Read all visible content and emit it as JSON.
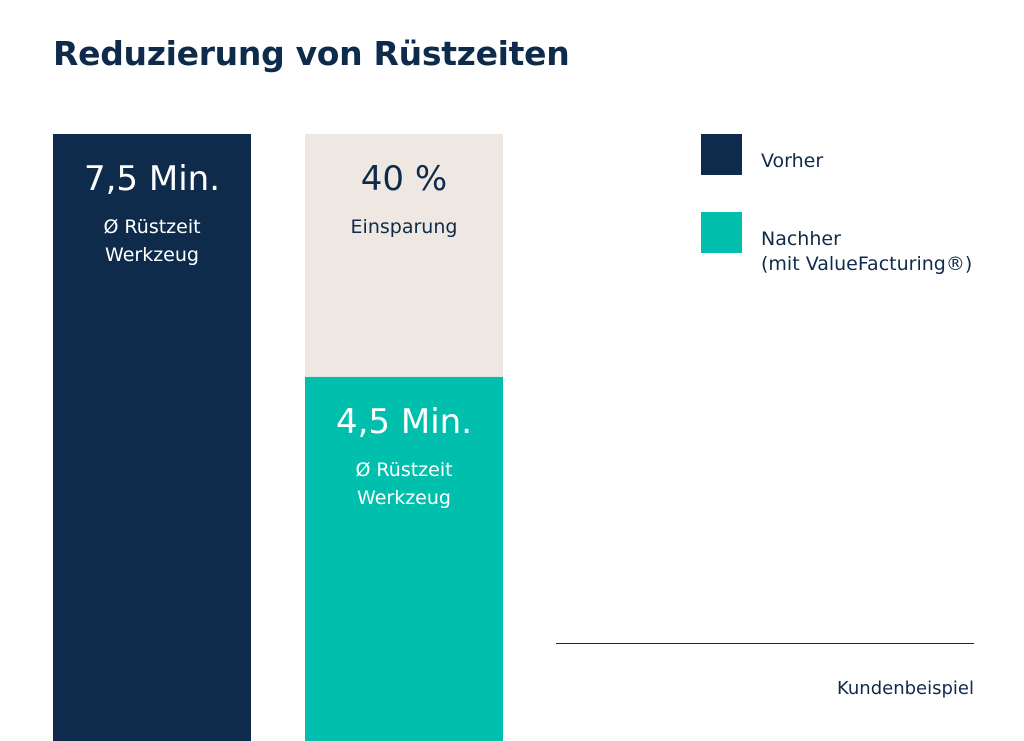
{
  "title": "Reduzierung von Rüstzeiten",
  "legend": [
    {
      "label": "Vorher",
      "sublabel": "",
      "color": "#0f2b4b"
    },
    {
      "label": "Nachher",
      "sublabel": "(mit ValueFacturing®)",
      "color": "#00bfad"
    }
  ],
  "footer": {
    "source": "Kundenbeispiel"
  },
  "chart_data": {
    "type": "bar",
    "stacked": true,
    "categories": [
      "Vorher",
      "Nachher"
    ],
    "unit": "Min.",
    "ylim": [
      0,
      7.5
    ],
    "series": [
      {
        "name": "Ø Rüstzeit Werkzeug",
        "values": [
          7.5,
          4.5
        ],
        "colors": [
          "#0f2b4b",
          "#00bfad"
        ],
        "labels": [
          "7,5 Min.",
          "4,5 Min."
        ],
        "sublabels": [
          [
            "Ø Rüstzeit",
            "Werkzeug"
          ],
          [
            "Ø Rüstzeit",
            "Werkzeug"
          ]
        ]
      },
      {
        "name": "Einsparung",
        "values": [
          0,
          3.0
        ],
        "colors": [
          "#efe8e2",
          "#efe8e2"
        ],
        "labels": [
          "",
          "40 %"
        ],
        "sublabels": [
          [],
          [
            "Einsparung"
          ]
        ]
      }
    ]
  }
}
